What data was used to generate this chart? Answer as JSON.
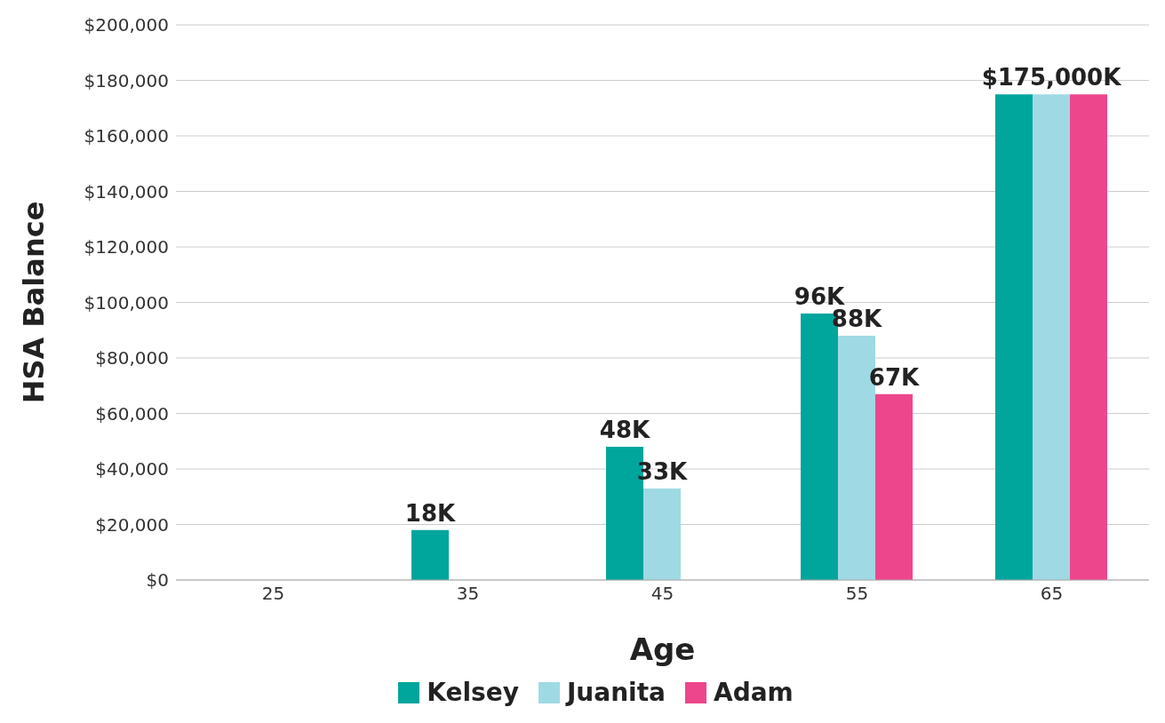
{
  "chart_data": {
    "type": "bar",
    "xlabel": "Age",
    "ylabel": "HSA Balance",
    "categories": [
      "25",
      "35",
      "45",
      "55",
      "65"
    ],
    "series": [
      {
        "name": "Kelsey",
        "color": "#00a59b",
        "values": [
          null,
          18000,
          48000,
          96000,
          175000
        ],
        "value_labels": [
          null,
          "18K",
          "48K",
          "96K",
          null
        ]
      },
      {
        "name": "Juanita",
        "color": "#9fdae4",
        "values": [
          null,
          null,
          33000,
          88000,
          175000
        ],
        "value_labels": [
          null,
          null,
          "33K",
          "88K",
          "$175,000K"
        ]
      },
      {
        "name": "Adam",
        "color": "#ee468c",
        "values": [
          null,
          null,
          null,
          67000,
          175000
        ],
        "value_labels": [
          null,
          null,
          null,
          "67K",
          null
        ]
      }
    ],
    "ylim": [
      0,
      200000
    ],
    "yticks": [
      {
        "value": 0,
        "label": "$0"
      },
      {
        "value": 20000,
        "label": "$20,000"
      },
      {
        "value": 40000,
        "label": "$40,000"
      },
      {
        "value": 60000,
        "label": "$60,000"
      },
      {
        "value": 80000,
        "label": "$80,000"
      },
      {
        "value": 100000,
        "label": "$100,000"
      },
      {
        "value": 120000,
        "label": "$120,000"
      },
      {
        "value": 140000,
        "label": "$140,000"
      },
      {
        "value": 160000,
        "label": "$160,000"
      },
      {
        "value": 180000,
        "label": "$180,000"
      },
      {
        "value": 200000,
        "label": "$200,000"
      }
    ],
    "grid": "y",
    "legend": "bottom"
  }
}
